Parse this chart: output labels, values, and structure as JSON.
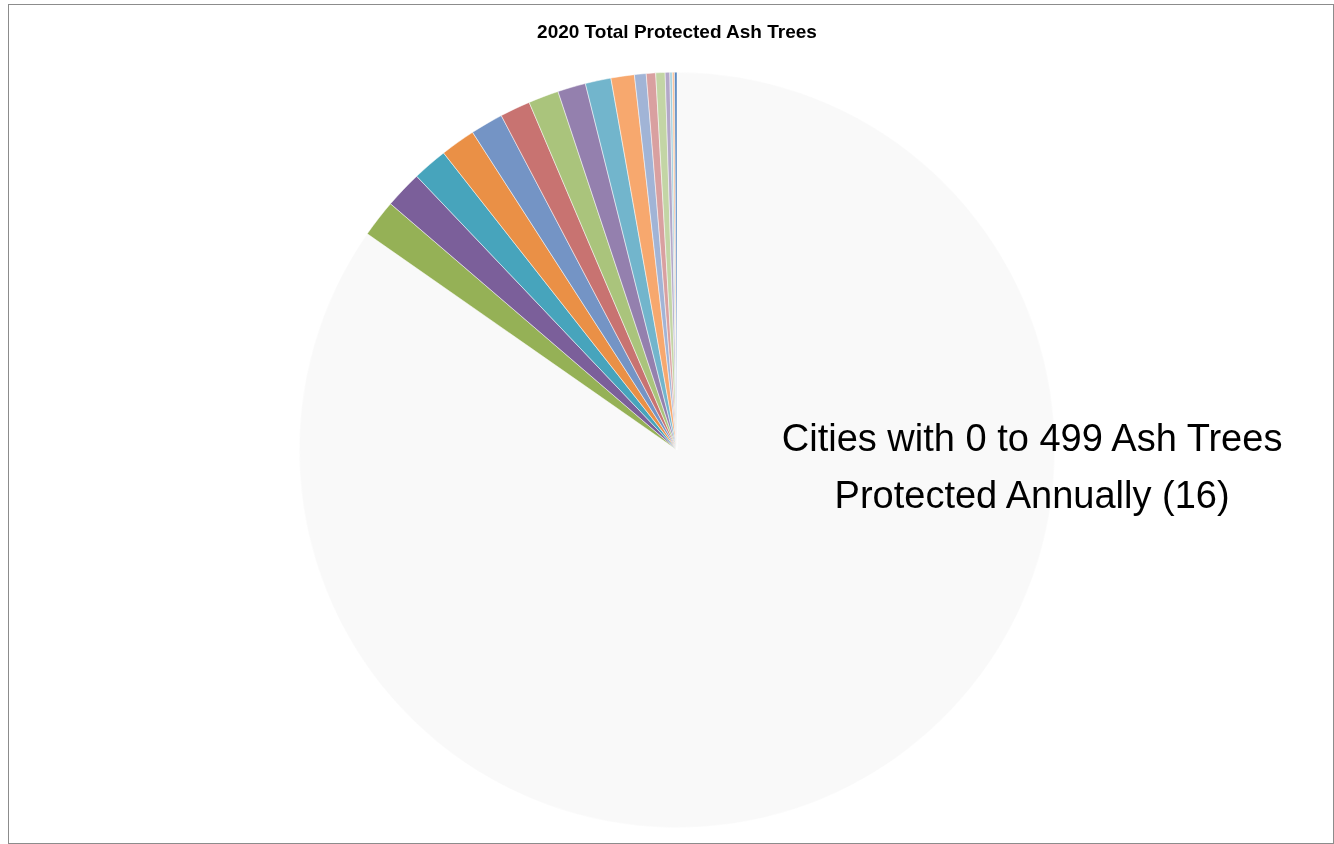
{
  "chart_data": {
    "type": "pie",
    "title": "2020 Total Protected Ash Trees",
    "categories": [
      "Cities with 0 to 499 Ash Trees Protected Annually (16)",
      null,
      null,
      null,
      null,
      null,
      null,
      null,
      null,
      null,
      null,
      null,
      null,
      null,
      null,
      null,
      null,
      null
    ],
    "values": [
      84.7,
      1.6,
      1.6,
      1.5,
      1.5,
      1.4,
      1.3,
      1.3,
      1.2,
      1.1,
      1.0,
      0.5,
      0.4,
      0.4,
      0.2,
      0.1,
      0.1,
      0.1
    ],
    "colors": [
      "#f9f9f9",
      "#95b156",
      "#7b5f9a",
      "#47a4bc",
      "#ea9046",
      "#7494c5",
      "#c87371",
      "#aac47c",
      "#9480ae",
      "#72b5cc",
      "#f7a86e",
      "#a1b4d6",
      "#d9a0a0",
      "#c3d5a5",
      "#b3a8c8",
      "#a0d0de",
      "#f9c59f",
      "#4f81bd"
    ],
    "legend": false
  }
}
